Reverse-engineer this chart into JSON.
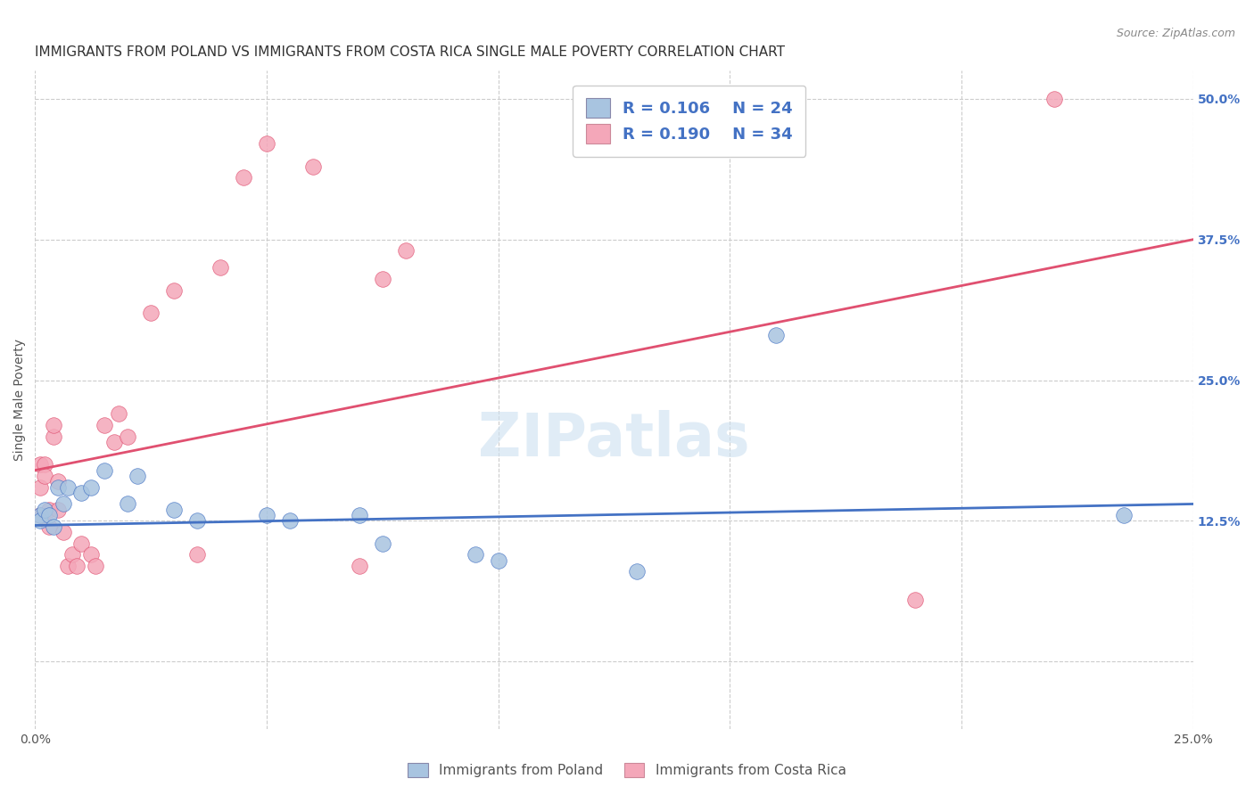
{
  "title": "IMMIGRANTS FROM POLAND VS IMMIGRANTS FROM COSTA RICA SINGLE MALE POVERTY CORRELATION CHART",
  "source": "Source: ZipAtlas.com",
  "ylabel": "Single Male Poverty",
  "legend_label_poland": "Immigrants from Poland",
  "legend_label_costarica": "Immigrants from Costa Rica",
  "legend_R_poland": "R = 0.106",
  "legend_N_poland": "N = 24",
  "legend_R_costarica": "R = 0.190",
  "legend_N_costarica": "N = 34",
  "xmin": 0.0,
  "xmax": 0.25,
  "ymin": -0.06,
  "ymax": 0.525,
  "yticks": [
    0.0,
    0.125,
    0.25,
    0.375,
    0.5
  ],
  "ytick_labels": [
    "",
    "12.5%",
    "25.0%",
    "37.5%",
    "50.0%"
  ],
  "xticks": [
    0.0,
    0.05,
    0.1,
    0.15,
    0.2,
    0.25
  ],
  "xtick_labels": [
    "0.0%",
    "",
    "",
    "",
    "",
    "25.0%"
  ],
  "color_poland": "#a8c4e0",
  "color_costarica": "#f4a7b9",
  "color_line_poland": "#4472c4",
  "color_line_costarica": "#e05070",
  "background_color": "#ffffff",
  "watermark_text": "ZIPatlas",
  "poland_x": [
    0.001,
    0.001,
    0.002,
    0.003,
    0.004,
    0.005,
    0.006,
    0.007,
    0.01,
    0.012,
    0.015,
    0.02,
    0.022,
    0.03,
    0.035,
    0.05,
    0.055,
    0.07,
    0.075,
    0.095,
    0.1,
    0.13,
    0.16,
    0.235
  ],
  "poland_y": [
    0.13,
    0.125,
    0.135,
    0.13,
    0.12,
    0.155,
    0.14,
    0.155,
    0.15,
    0.155,
    0.17,
    0.14,
    0.165,
    0.135,
    0.125,
    0.13,
    0.125,
    0.13,
    0.105,
    0.095,
    0.09,
    0.08,
    0.29,
    0.13
  ],
  "costarica_x": [
    0.001,
    0.001,
    0.001,
    0.002,
    0.002,
    0.003,
    0.003,
    0.004,
    0.004,
    0.005,
    0.005,
    0.006,
    0.007,
    0.008,
    0.009,
    0.01,
    0.012,
    0.013,
    0.015,
    0.017,
    0.018,
    0.02,
    0.025,
    0.03,
    0.035,
    0.04,
    0.045,
    0.05,
    0.06,
    0.07,
    0.075,
    0.08,
    0.19,
    0.22
  ],
  "costarica_y": [
    0.13,
    0.175,
    0.155,
    0.175,
    0.165,
    0.135,
    0.12,
    0.2,
    0.21,
    0.16,
    0.135,
    0.115,
    0.085,
    0.095,
    0.085,
    0.105,
    0.095,
    0.085,
    0.21,
    0.195,
    0.22,
    0.2,
    0.31,
    0.33,
    0.095,
    0.35,
    0.43,
    0.46,
    0.44,
    0.085,
    0.34,
    0.365,
    0.055,
    0.5
  ],
  "trend_poland_x0": 0.0,
  "trend_poland_y0": 0.121,
  "trend_poland_x1": 0.25,
  "trend_poland_y1": 0.14,
  "trend_cr_x0": 0.0,
  "trend_cr_y0": 0.17,
  "trend_cr_x1": 0.25,
  "trend_cr_y1": 0.375,
  "grid_color": "#cccccc",
  "grid_style": "--",
  "title_fontsize": 11,
  "axis_fontsize": 10,
  "tick_fontsize": 10,
  "legend_fontsize": 13,
  "right_tick_color": "#4472c4"
}
